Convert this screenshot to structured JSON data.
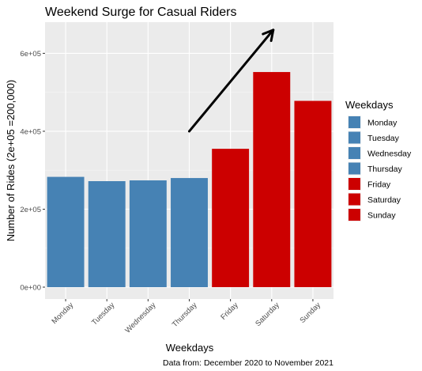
{
  "chart_data": {
    "type": "bar",
    "title": "Weekend Surge for Casual Riders",
    "xlabel": "Weekdays",
    "ylabel": "Number of Rides (2e+05 =200,000)",
    "caption": "Data from: December 2020 to November 2021",
    "categories": [
      "Monday",
      "Tuesday",
      "Wednesday",
      "Thursday",
      "Friday",
      "Saturday",
      "Sunday"
    ],
    "values": [
      283000,
      272000,
      274000,
      280000,
      355000,
      552000,
      478000
    ],
    "colors": [
      "#4682B4",
      "#4682B4",
      "#4682B4",
      "#4682B4",
      "#CC0000",
      "#CC0000",
      "#CC0000"
    ],
    "ylim": [
      0,
      680000
    ],
    "yticks": [
      0,
      200000,
      400000,
      600000
    ],
    "ytick_labels": [
      "0e+00",
      "2e+05",
      "4e+05",
      "6e+05"
    ],
    "grid": true,
    "legend": {
      "title": "Weekdays",
      "placement": "right",
      "entries": [
        {
          "label": "Monday",
          "color": "#4682B4"
        },
        {
          "label": "Tuesday",
          "color": "#4682B4"
        },
        {
          "label": "Wednesday",
          "color": "#4682B4"
        },
        {
          "label": "Thursday",
          "color": "#4682B4"
        },
        {
          "label": "Friday",
          "color": "#CC0000"
        },
        {
          "label": "Saturday",
          "color": "#CC0000"
        },
        {
          "label": "Sunday",
          "color": "#CC0000"
        }
      ]
    },
    "annotation": {
      "type": "arrow",
      "from": {
        "category": "Thursday",
        "value": 400000
      },
      "to": {
        "category": "Saturday",
        "value": 660000
      }
    }
  }
}
